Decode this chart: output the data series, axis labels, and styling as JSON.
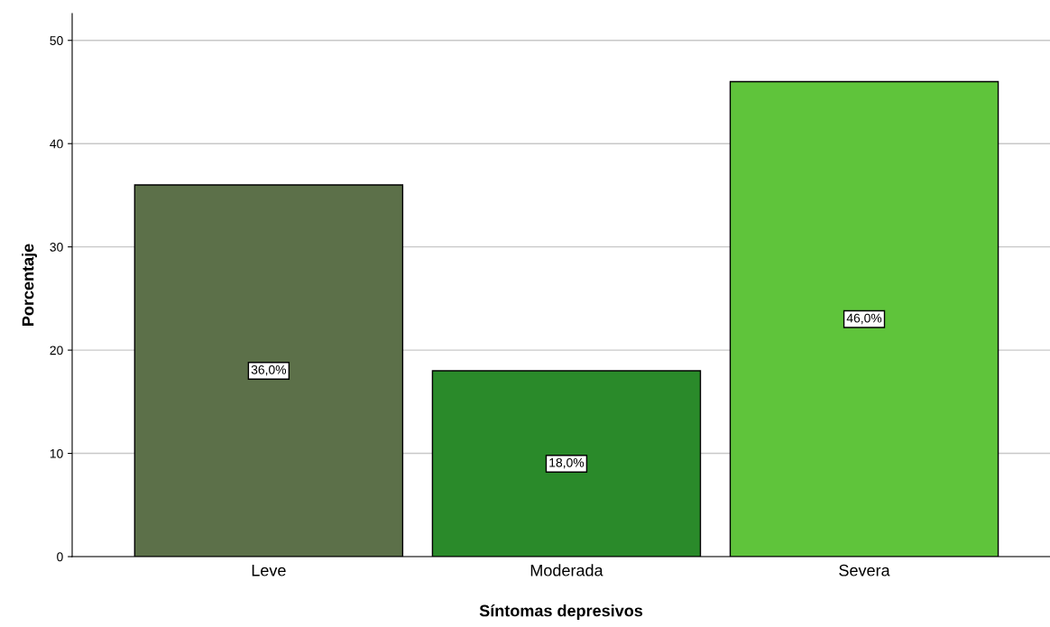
{
  "chart_data": {
    "type": "bar",
    "xlabel": "Síntomas depresivos",
    "ylabel": "Porcentaje",
    "categories": [
      "Leve",
      "Moderada",
      "Severa"
    ],
    "values": [
      36.0,
      18.0,
      46.0
    ],
    "value_labels": [
      "36,0%",
      "18,0%",
      "46,0%"
    ],
    "colors": [
      "#5c7049",
      "#2a8a2a",
      "#5fc43b"
    ],
    "ylim": [
      0,
      52.6
    ],
    "yticks": [
      0,
      10,
      20,
      30,
      40,
      50
    ],
    "grid": "y"
  }
}
